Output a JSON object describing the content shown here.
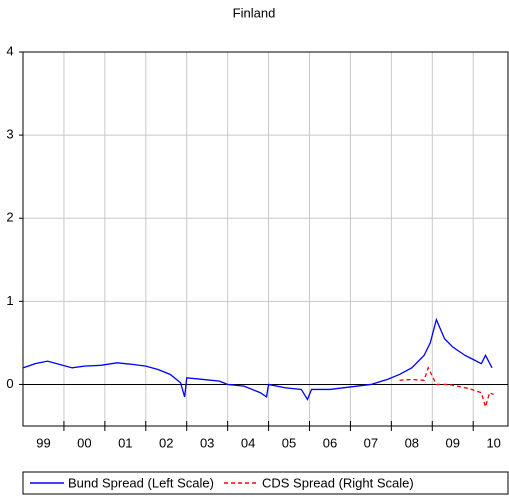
{
  "chart_data": {
    "type": "line",
    "title": "Finland",
    "xlim": [
      1999,
      2010.85
    ],
    "xticks": [
      {
        "value": 1999.5,
        "label": "99"
      },
      {
        "value": 2000.5,
        "label": "00"
      },
      {
        "value": 2001.5,
        "label": "01"
      },
      {
        "value": 2002.5,
        "label": "02"
      },
      {
        "value": 2003.5,
        "label": "03"
      },
      {
        "value": 2004.5,
        "label": "04"
      },
      {
        "value": 2005.5,
        "label": "05"
      },
      {
        "value": 2006.5,
        "label": "06"
      },
      {
        "value": 2007.5,
        "label": "07"
      },
      {
        "value": 2008.5,
        "label": "08"
      },
      {
        "value": 2009.5,
        "label": "09"
      },
      {
        "value": 2010.5,
        "label": "10"
      }
    ],
    "xgrid": [
      2000,
      2001,
      2002,
      2003,
      2004,
      2005,
      2006,
      2007,
      2008,
      2009,
      2010
    ],
    "ylim": [
      -0.5,
      4
    ],
    "yticks": [
      0,
      1,
      2,
      3,
      4
    ],
    "y2lim": [
      -0.5,
      4
    ],
    "grid": true,
    "series": [
      {
        "name": "Bund Spread (Left Scale)",
        "color": "#0000ff",
        "dash": false,
        "x": [
          1999.0,
          1999.3,
          1999.6,
          1999.9,
          2000.2,
          2000.5,
          2000.9,
          2001.3,
          2001.7,
          2002.0,
          2002.3,
          2002.6,
          2002.85,
          2002.95,
          2003.0,
          2003.4,
          2003.8,
          2004.0,
          2004.4,
          2004.8,
          2004.95,
          2005.0,
          2005.4,
          2005.8,
          2005.95,
          2006.05,
          2006.5,
          2007.0,
          2007.5,
          2007.9,
          2008.2,
          2008.5,
          2008.8,
          2008.95,
          2009.1,
          2009.3,
          2009.5,
          2009.8,
          2010.0,
          2010.2,
          2010.3,
          2010.46
        ],
        "values": [
          0.2,
          0.25,
          0.28,
          0.24,
          0.2,
          0.22,
          0.23,
          0.26,
          0.24,
          0.22,
          0.18,
          0.12,
          0.02,
          -0.15,
          0.08,
          0.06,
          0.04,
          0.0,
          -0.02,
          -0.1,
          -0.15,
          0.0,
          -0.04,
          -0.06,
          -0.18,
          -0.06,
          -0.06,
          -0.03,
          0.0,
          0.06,
          0.12,
          0.2,
          0.35,
          0.5,
          0.78,
          0.55,
          0.45,
          0.35,
          0.3,
          0.25,
          0.35,
          0.2
        ]
      },
      {
        "name": "CDS Spread (Right Scale)",
        "color": "#ff0000",
        "dash": true,
        "axis": "y2",
        "x": [
          2008.2,
          2008.5,
          2008.8,
          2008.9,
          2009.1,
          2009.4,
          2009.9,
          2010.2,
          2010.3,
          2010.4,
          2010.5
        ],
        "values": [
          0.05,
          0.06,
          0.05,
          0.2,
          0.0,
          0.0,
          -0.05,
          -0.1,
          -0.27,
          -0.1,
          -0.12
        ]
      }
    ],
    "legend": "bottom"
  }
}
